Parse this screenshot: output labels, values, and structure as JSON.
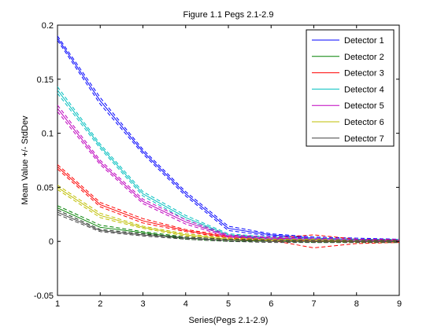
{
  "chart_data": {
    "type": "line",
    "title": "Figure 1.1 Pegs 2.1-2.9",
    "xlabel": "Series(Pegs 2.1-2.9)",
    "ylabel": "Mean Value +/- StdDev",
    "xlim": [
      1,
      9
    ],
    "ylim": [
      -0.05,
      0.2
    ],
    "xticks": [
      "1",
      "2",
      "3",
      "4",
      "5",
      "6",
      "7",
      "8",
      "9"
    ],
    "yticks": [
      "-0.05",
      "0",
      "0.05",
      "0.1",
      "0.15",
      "0.2"
    ],
    "grid": false,
    "legend_position": "top-right",
    "x": [
      1,
      2,
      3,
      4,
      5,
      6,
      7,
      8,
      9
    ],
    "series": [
      {
        "name": "Detector 1",
        "color": "#0000ff",
        "values": [
          0.188,
          0.13,
          0.083,
          0.044,
          0.012,
          0.006,
          0.003,
          0.002,
          0.001
        ],
        "stddev": [
          0.002,
          0.003,
          0.002,
          0.002,
          0.002,
          0.001,
          0.001,
          0.001,
          0.001
        ]
      },
      {
        "name": "Detector 2",
        "color": "#008000",
        "values": [
          0.031,
          0.013,
          0.008,
          0.003,
          0.001,
          0.001,
          0.0,
          0.0,
          0.0
        ],
        "stddev": [
          0.002,
          0.002,
          0.001,
          0.001,
          0.001,
          0.001,
          0.001,
          0.001,
          0.001
        ]
      },
      {
        "name": "Detector 3",
        "color": "#ff0000",
        "values": [
          0.069,
          0.034,
          0.019,
          0.01,
          0.004,
          0.002,
          0.0,
          0.0,
          0.0
        ],
        "stddev": [
          0.002,
          0.002,
          0.002,
          0.001,
          0.001,
          0.001,
          0.006,
          0.002,
          0.001
        ]
      },
      {
        "name": "Detector 4",
        "color": "#00bfbf",
        "values": [
          0.14,
          0.088,
          0.044,
          0.022,
          0.006,
          0.003,
          0.002,
          0.001,
          0.001
        ],
        "stddev": [
          0.003,
          0.002,
          0.002,
          0.002,
          0.001,
          0.001,
          0.001,
          0.001,
          0.001
        ]
      },
      {
        "name": "Detector 5",
        "color": "#bf00bf",
        "values": [
          0.123,
          0.073,
          0.037,
          0.018,
          0.005,
          0.003,
          0.002,
          0.001,
          0.001
        ],
        "stddev": [
          0.003,
          0.002,
          0.002,
          0.002,
          0.001,
          0.001,
          0.001,
          0.001,
          0.001
        ]
      },
      {
        "name": "Detector 6",
        "color": "#bfbf00",
        "values": [
          0.05,
          0.024,
          0.013,
          0.006,
          0.002,
          0.001,
          0.001,
          0.0,
          0.0
        ],
        "stddev": [
          0.002,
          0.002,
          0.001,
          0.001,
          0.001,
          0.001,
          0.001,
          0.001,
          0.001
        ]
      },
      {
        "name": "Detector 7",
        "color": "#404040",
        "values": [
          0.027,
          0.01,
          0.006,
          0.003,
          0.001,
          0.0,
          0.0,
          0.0,
          0.0
        ],
        "stddev": [
          0.002,
          0.001,
          0.001,
          0.001,
          0.001,
          0.001,
          0.001,
          0.001,
          0.001
        ]
      }
    ]
  }
}
